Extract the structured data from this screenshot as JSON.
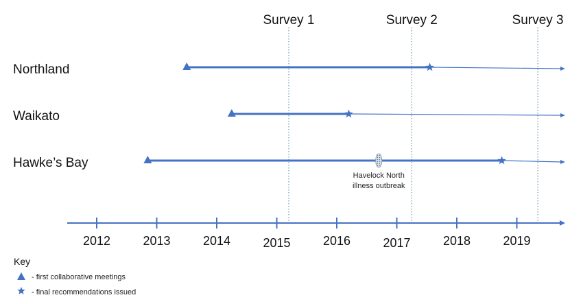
{
  "colors": {
    "line": "#4472c4",
    "survey_line": "#4a7fa0",
    "text": "#111111"
  },
  "surveys": [
    {
      "label": "Survey 1",
      "year": 2015.2
    },
    {
      "label": "Survey 2",
      "year": 2017.25
    },
    {
      "label": "Survey 3",
      "year": 2019.35
    }
  ],
  "regions": [
    {
      "label": "Northland",
      "first_meeting": 2013.5,
      "recommendations": 2017.55
    },
    {
      "label": "Waikato",
      "first_meeting": 2014.25,
      "recommendations": 2016.2
    },
    {
      "label": "Hawke’s Bay",
      "first_meeting": 2012.85,
      "recommendations": 2018.75
    }
  ],
  "event": {
    "label_line1": "Havelock North",
    "label_line2": "illness outbreak",
    "year": 2016.7,
    "region_index": 2
  },
  "axis": {
    "years": [
      "2012",
      "2013",
      "2014",
      "2015",
      "2016",
      "2017",
      "2018",
      "2019"
    ]
  },
  "key": {
    "title": "Key",
    "triangle_icon": "triangle-icon",
    "triangle_text": "- first collaborative meetings",
    "star_icon": "star-icon",
    "star_text": "- final recommendations issued"
  }
}
